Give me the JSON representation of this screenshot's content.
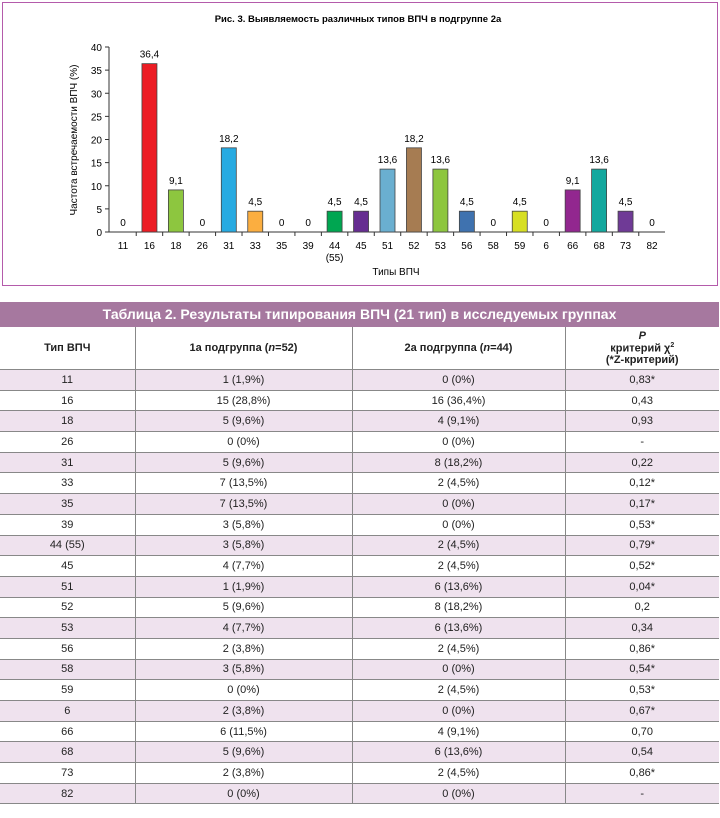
{
  "chart_data": {
    "type": "bar",
    "title": "Рис. 3. Выявляемость различных типов ВПЧ в подгруппе 2а",
    "xlabel": "Типы ВПЧ",
    "ylabel": "Частота встречаемости ВПЧ (%)",
    "ylim": [
      0,
      40
    ],
    "yticks": [
      0,
      5,
      10,
      15,
      20,
      25,
      30,
      35,
      40
    ],
    "categories": [
      "11",
      "16",
      "18",
      "26",
      "31",
      "33",
      "35",
      "39",
      "44 (55)",
      "45",
      "51",
      "52",
      "53",
      "56",
      "58",
      "59",
      "6",
      "66",
      "68",
      "73",
      "82"
    ],
    "values": [
      0,
      36.4,
      9.1,
      0,
      18.2,
      4.5,
      0,
      0,
      4.5,
      4.5,
      13.6,
      18.2,
      13.6,
      4.5,
      0,
      4.5,
      0,
      9.1,
      13.6,
      4.5,
      0
    ],
    "labels": [
      "0",
      "36,4",
      "9,1",
      "0",
      "18,2",
      "4,5",
      "0",
      "0",
      "4,5",
      "4,5",
      "13,6",
      "18,2",
      "13,6",
      "4,5",
      "0",
      "4,5",
      "0",
      "9,1",
      "13,6",
      "4,5",
      "0"
    ],
    "colors": [
      "#999999",
      "#ec1c24",
      "#8dc63f",
      "#999999",
      "#27aae1",
      "#fbae40",
      "#999999",
      "#999999",
      "#00a651",
      "#662d91",
      "#6aafd0",
      "#a67c52",
      "#8dc63f",
      "#3f72af",
      "#999999",
      "#d7df23",
      "#999999",
      "#92278f",
      "#13a89e",
      "#6f3a96",
      "#999999"
    ],
    "grid": false
  },
  "table": {
    "caption": "Таблица 2. Результаты типирования ВПЧ (21 тип) в исследуемых группах",
    "headers": [
      "Тип ВПЧ",
      "1а подгруппа (n=52)",
      "2а подгруппа (n=44)",
      "P критерий χ² (*Z-критерий)"
    ],
    "rows": [
      [
        "11",
        "1 (1,9%)",
        "0 (0%)",
        "0,83*"
      ],
      [
        "16",
        "15 (28,8%)",
        "16 (36,4%)",
        "0,43"
      ],
      [
        "18",
        "5 (9,6%)",
        "4 (9,1%)",
        "0,93"
      ],
      [
        "26",
        "0 (0%)",
        "0 (0%)",
        "-"
      ],
      [
        "31",
        "5 (9,6%)",
        "8 (18,2%)",
        "0,22"
      ],
      [
        "33",
        "7 (13,5%)",
        "2 (4,5%)",
        "0,12*"
      ],
      [
        "35",
        "7 (13,5%)",
        "0 (0%)",
        "0,17*"
      ],
      [
        "39",
        "3 (5,8%)",
        "0 (0%)",
        "0,53*"
      ],
      [
        "44 (55)",
        "3 (5,8%)",
        "2 (4,5%)",
        "0,79*"
      ],
      [
        "45",
        "4 (7,7%)",
        "2 (4,5%)",
        "0,52*"
      ],
      [
        "51",
        "1 (1,9%)",
        "6 (13,6%)",
        "0,04*"
      ],
      [
        "52",
        "5 (9,6%)",
        "8 (18,2%)",
        "0,2"
      ],
      [
        "53",
        "4 (7,7%)",
        "6 (13,6%)",
        "0,34"
      ],
      [
        "56",
        "2 (3,8%)",
        "2 (4,5%)",
        "0,86*"
      ],
      [
        "58",
        "3 (5,8%)",
        "0 (0%)",
        "0,54*"
      ],
      [
        "59",
        "0 (0%)",
        "2 (4,5%)",
        "0,53*"
      ],
      [
        "6",
        "2 (3,8%)",
        "0 (0%)",
        "0,67*"
      ],
      [
        "66",
        "6 (11,5%)",
        "4 (9,1%)",
        "0,70"
      ],
      [
        "68",
        "5 (9,6%)",
        "6 (13,6%)",
        "0,54"
      ],
      [
        "73",
        "2 (3,8%)",
        "2 (4,5%)",
        "0,86*"
      ],
      [
        "82",
        "0 (0%)",
        "0 (0%)",
        "-"
      ]
    ]
  }
}
